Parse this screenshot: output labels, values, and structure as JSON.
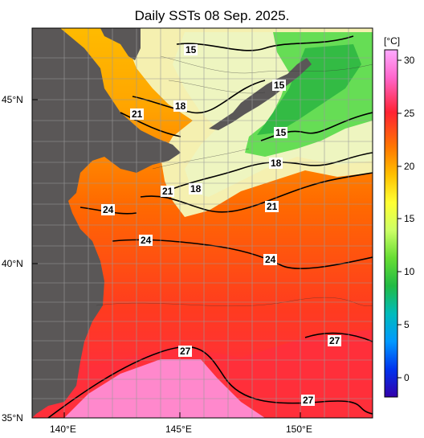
{
  "title": "Daily SSTs 08 Sep. 2025.",
  "map": {
    "lat_labels": [
      "45°N",
      "40°N",
      "35°N"
    ],
    "lon_labels": [
      "140°E",
      "145°E",
      "150°E"
    ],
    "land_color": "#5a5757",
    "isotherm_labels": [
      "15",
      "15",
      "15",
      "18",
      "18",
      "18",
      "21",
      "21",
      "21",
      "24",
      "24",
      "24",
      "27",
      "27",
      "27"
    ]
  },
  "colorbar": {
    "unit": "[°C]",
    "ticks": [
      "30",
      "25",
      "20",
      "15",
      "10",
      "5",
      "0"
    ],
    "colors": [
      "#ff99ff",
      "#ff66cc",
      "#ff3333",
      "#ff6600",
      "#ffa500",
      "#ffd700",
      "#ffff33",
      "#ccff66",
      "#66dd33",
      "#22aa33",
      "#00bbbb",
      "#0099ff",
      "#0044ff",
      "#1100cc",
      "#3300aa"
    ]
  }
}
